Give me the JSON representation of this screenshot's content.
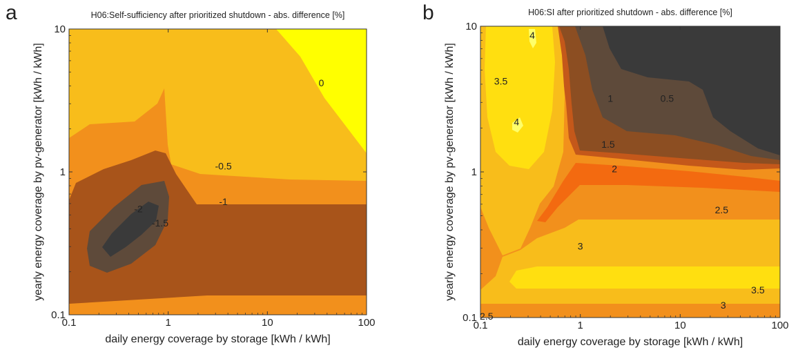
{
  "chart_data": [
    {
      "panel": "a",
      "type": "contour",
      "title": "H06:Self-sufficiency after prioritized shutdown - abs. difference [%]",
      "xlabel": "daily energy coverage by storage [kWh / kWh]",
      "ylabel": "yearly energy coverage by pv-generator [kWh / kWh]",
      "xscale": "log",
      "yscale": "log",
      "xlim": [
        0.1,
        100
      ],
      "ylim": [
        0.1,
        10
      ],
      "xticks": [
        "0.1",
        "1",
        "10",
        "100"
      ],
      "yticks": [
        "0.1",
        "1",
        "10"
      ],
      "contour_levels": [
        "-2",
        "-1.5",
        "-1",
        "-0.5",
        "0"
      ],
      "level_colors": {
        "below -2": "#3a3a3a",
        "-2 to -1.5": "#5e4a3a",
        "-1.5 to -1": "#a8541a",
        "-1 to -0.5": "#f2901c",
        "-0.5 to 0": "#f8bd1b",
        "above 0": "#ffff00"
      },
      "contour_labels": [
        {
          "text": "0",
          "x": 35,
          "y": 4.2
        },
        {
          "text": "-0.5",
          "x": 3.6,
          "y": 1.1
        },
        {
          "text": "-1",
          "x": 3.6,
          "y": 0.62
        },
        {
          "text": "-2",
          "x": 0.5,
          "y": 0.55
        },
        {
          "text": "-1.5",
          "x": 0.83,
          "y": 0.44
        }
      ]
    },
    {
      "panel": "b",
      "type": "contour",
      "title": "H06:SI after prioritized shutdown - abs. difference [%]",
      "xlabel": "daily energy coverage by storage [kWh / kWh]",
      "ylabel": "yearly energy coverage by pv-generator [kWh / kWh]",
      "xscale": "log",
      "yscale": "log",
      "xlim": [
        0.1,
        100
      ],
      "ylim": [
        0.1,
        10
      ],
      "xticks": [
        "0.1",
        "1",
        "10",
        "100"
      ],
      "yticks": [
        "0.1",
        "1",
        "10"
      ],
      "contour_levels": [
        "0.5",
        "1",
        "1.5",
        "2",
        "2.5",
        "3",
        "3.5",
        "4"
      ],
      "level_colors": {
        "below 0.5": "#3a3a3a",
        "0.5 to 1": "#5e4a3a",
        "1 to 1.5": "#8c4e22",
        "1.5 to 2": "#c4581a",
        "2 to 2.5": "#f36a10",
        "2.5 to 3": "#f2901c",
        "3 to 3.5": "#f8bd1b",
        "3.5 to 4": "#ffdf10",
        "above 4": "#ffff6a"
      },
      "contour_labels": [
        {
          "text": "4",
          "x": 0.33,
          "y": 8.7
        },
        {
          "text": "3.5",
          "x": 0.16,
          "y": 4.2
        },
        {
          "text": "4",
          "x": 0.23,
          "y": 2.2
        },
        {
          "text": "1",
          "x": 2.0,
          "y": 3.2
        },
        {
          "text": "0.5",
          "x": 7.4,
          "y": 3.2
        },
        {
          "text": "1.5",
          "x": 1.9,
          "y": 1.55
        },
        {
          "text": "2",
          "x": 2.2,
          "y": 1.05
        },
        {
          "text": "2.5",
          "x": 26,
          "y": 0.55
        },
        {
          "text": "3",
          "x": 1.0,
          "y": 0.31
        },
        {
          "text": "3.5",
          "x": 60,
          "y": 0.155
        },
        {
          "text": "3",
          "x": 27,
          "y": 0.122
        },
        {
          "text": "2.5",
          "x": 0.115,
          "y": 0.102
        }
      ]
    }
  ],
  "panel_letters": [
    "a",
    "b"
  ]
}
